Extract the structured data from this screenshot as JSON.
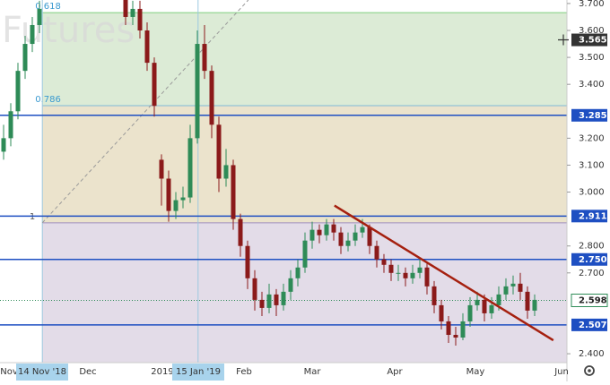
{
  "chart_data": {
    "type": "candlestick",
    "watermark": "Futures",
    "ylim": [
      2.367,
      3.713
    ],
    "yticks": [
      {
        "value": 3.7,
        "label": "3.700"
      },
      {
        "value": 3.6,
        "label": "3.600"
      },
      {
        "value": 3.5,
        "label": "3.500"
      },
      {
        "value": 3.4,
        "label": "3.400"
      },
      {
        "value": 3.2,
        "label": "3.200"
      },
      {
        "value": 3.1,
        "label": "3.100"
      },
      {
        "value": 3.0,
        "label": "3.000"
      },
      {
        "value": 2.8,
        "label": "2.800"
      },
      {
        "value": 2.7,
        "label": "2.700"
      },
      {
        "value": 2.4,
        "label": "2.400"
      }
    ],
    "x_labels": [
      "Nov",
      "14 Nov '18",
      "Dec",
      "2019",
      "15 Jan '19",
      "Feb",
      "Mar",
      "Apr",
      "May",
      "Jun"
    ],
    "up_color": "#2e8b57",
    "down_color": "#8b1a1a",
    "candles": [
      [
        3.15,
        3.25,
        3.12,
        3.2
      ],
      [
        3.2,
        3.33,
        3.17,
        3.3
      ],
      [
        3.3,
        3.48,
        3.27,
        3.45
      ],
      [
        3.45,
        3.58,
        3.42,
        3.55
      ],
      [
        3.55,
        3.65,
        3.52,
        3.62
      ],
      [
        3.62,
        3.71,
        3.59,
        3.68
      ],
      null,
      null,
      null,
      null,
      null,
      null,
      null,
      null,
      null,
      null,
      null,
      [
        3.72,
        3.73,
        3.62,
        3.65
      ],
      [
        3.65,
        3.71,
        3.62,
        3.68
      ],
      [
        3.68,
        3.71,
        3.57,
        3.6
      ],
      [
        3.6,
        3.63,
        3.45,
        3.48
      ],
      [
        3.48,
        3.5,
        3.28,
        3.32
      ],
      [
        3.12,
        3.14,
        2.95,
        3.05
      ],
      [
        3.05,
        3.08,
        2.89,
        2.93
      ],
      [
        2.93,
        3.0,
        2.9,
        2.97
      ],
      [
        2.97,
        3.02,
        2.94,
        2.98
      ],
      [
        2.98,
        3.25,
        2.96,
        3.2
      ],
      [
        3.2,
        3.6,
        3.18,
        3.55
      ],
      [
        3.55,
        3.62,
        3.42,
        3.45
      ],
      [
        3.45,
        3.47,
        3.2,
        3.25
      ],
      [
        3.25,
        3.28,
        3.0,
        3.05
      ],
      [
        3.05,
        3.16,
        3.02,
        3.1
      ],
      [
        3.1,
        3.12,
        2.86,
        2.9
      ],
      [
        2.9,
        2.92,
        2.76,
        2.8
      ],
      [
        2.8,
        2.82,
        2.64,
        2.68
      ],
      [
        2.68,
        2.71,
        2.56,
        2.6
      ],
      [
        2.6,
        2.63,
        2.54,
        2.57
      ],
      [
        2.57,
        2.66,
        2.55,
        2.62
      ],
      [
        2.62,
        2.64,
        2.54,
        2.58
      ],
      [
        2.58,
        2.66,
        2.56,
        2.63
      ],
      [
        2.63,
        2.71,
        2.6,
        2.68
      ],
      [
        2.68,
        2.75,
        2.65,
        2.72
      ],
      [
        2.72,
        2.85,
        2.7,
        2.82
      ],
      [
        2.82,
        2.89,
        2.79,
        2.86
      ],
      [
        2.86,
        2.88,
        2.81,
        2.84
      ],
      [
        2.84,
        2.9,
        2.82,
        2.88
      ],
      [
        2.88,
        2.9,
        2.82,
        2.85
      ],
      [
        2.85,
        2.87,
        2.77,
        2.8
      ],
      [
        2.8,
        2.85,
        2.78,
        2.82
      ],
      [
        2.82,
        2.88,
        2.8,
        2.85
      ],
      [
        2.85,
        2.9,
        2.83,
        2.87
      ],
      [
        2.87,
        2.88,
        2.77,
        2.8
      ],
      [
        2.8,
        2.82,
        2.72,
        2.75
      ],
      [
        2.75,
        2.77,
        2.7,
        2.73
      ],
      [
        2.73,
        2.75,
        2.67,
        2.7
      ],
      [
        2.7,
        2.73,
        2.67,
        2.7
      ],
      [
        2.7,
        2.72,
        2.65,
        2.68
      ],
      [
        2.68,
        2.73,
        2.66,
        2.7
      ],
      [
        2.7,
        2.75,
        2.68,
        2.72
      ],
      [
        2.72,
        2.74,
        2.62,
        2.65
      ],
      [
        2.65,
        2.67,
        2.55,
        2.58
      ],
      [
        2.58,
        2.6,
        2.49,
        2.52
      ],
      [
        2.52,
        2.54,
        2.44,
        2.47
      ],
      [
        2.47,
        2.5,
        2.43,
        2.46
      ],
      [
        2.46,
        2.55,
        2.45,
        2.52
      ],
      [
        2.52,
        2.61,
        2.5,
        2.58
      ],
      [
        2.58,
        2.63,
        2.56,
        2.6
      ],
      [
        2.6,
        2.62,
        2.52,
        2.55
      ],
      [
        2.55,
        2.61,
        2.53,
        2.58
      ],
      [
        2.58,
        2.65,
        2.56,
        2.62
      ],
      [
        2.62,
        2.68,
        2.6,
        2.65
      ],
      [
        2.65,
        2.69,
        2.62,
        2.66
      ],
      [
        2.66,
        2.7,
        2.6,
        2.63
      ],
      [
        2.63,
        2.65,
        2.53,
        2.56
      ],
      [
        2.56,
        2.62,
        2.54,
        2.6
      ]
    ],
    "fib_levels": [
      {
        "label": "0.618",
        "value": 3.666,
        "color": "#7fcf7f",
        "fill": "#dcebd6"
      },
      {
        "label": "0.786",
        "value": 3.321,
        "color": "#7fb8d8",
        "fill": "#ebe3cc"
      },
      {
        "label": "1",
        "value": 2.886,
        "color": "#a08fc0",
        "fill": "#e3dce8"
      }
    ],
    "levels": [
      {
        "value": 3.285,
        "label": "3.285",
        "color": "#1e4fc2"
      },
      {
        "value": 2.911,
        "label": "2.911",
        "color": "#1e4fc2"
      },
      {
        "value": 2.75,
        "label": "2.750",
        "color": "#1e4fc2"
      },
      {
        "value": 2.507,
        "label": "2.507",
        "color": "#1e4fc2"
      }
    ],
    "last_price": {
      "value": 2.598,
      "label": "2.598",
      "color": "#2e8b57"
    },
    "crosshair": {
      "value": 3.565,
      "label": "3.565"
    },
    "trendline": {
      "from": [
        46.1,
        2.95
      ],
      "to": [
        76.6,
        2.45
      ],
      "color": "#a5200f"
    },
    "fib_trend": {
      "from": [
        5.4,
        2.886
      ],
      "to": [
        34.1,
        3.713
      ]
    },
    "markers": [
      5.4,
      27.1
    ]
  }
}
